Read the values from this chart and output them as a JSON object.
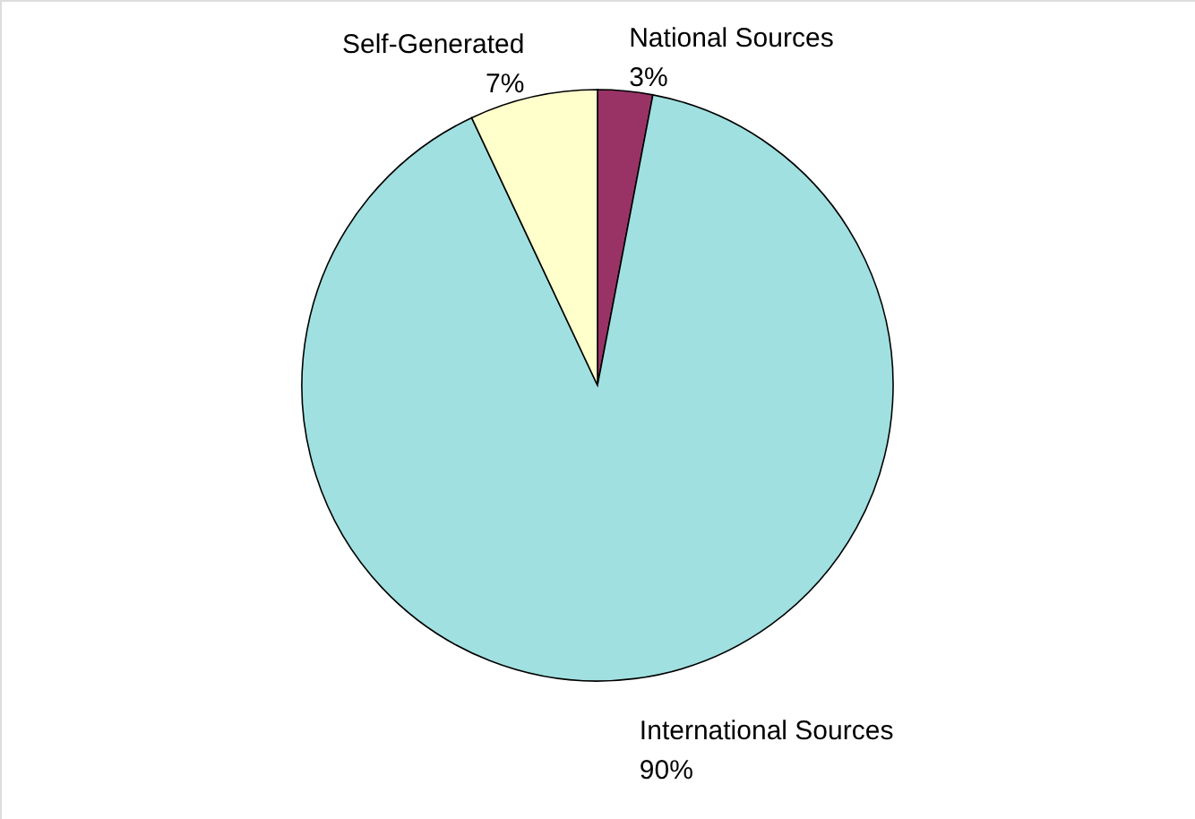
{
  "chart_data": {
    "type": "pie",
    "categories": [
      "National Sources",
      "International Sources",
      "Self-Generated"
    ],
    "values": [
      3,
      90,
      7
    ],
    "colors": [
      "#993366",
      "#a0e0e0",
      "#ffffcc"
    ],
    "value_labels": [
      "3%",
      "90%",
      "7%"
    ]
  }
}
